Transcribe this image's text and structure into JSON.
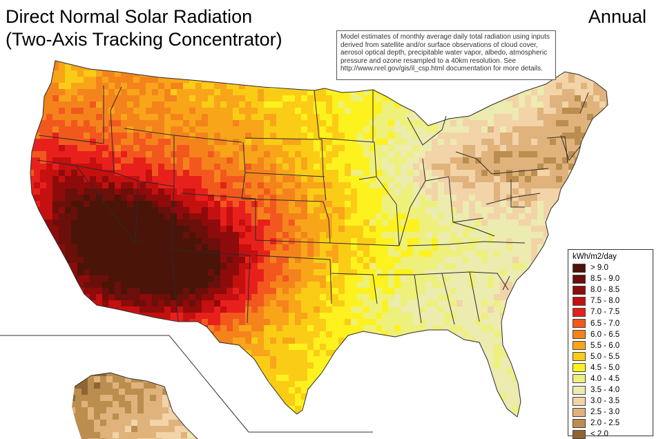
{
  "title": {
    "line1": "Direct Normal Solar Radiation",
    "line2": "(Two-Axis Tracking Concentrator)"
  },
  "period": "Annual",
  "note_lines": [
    "Model estimates of monthly average daily total radiation using inputs",
    "derived from satellite and/or surface observations of cloud cover,",
    "aerosol optical depth, precipitable water vapor, albedo, atmospheric",
    "pressure and ozone resampled to a 40km resolution.  See",
    "http://www.nrel.gov/gis/il_csp.html documentation for more details."
  ],
  "legend": {
    "unit": "kWh/m2/day",
    "classes": [
      {
        "label": "> 9.0",
        "color": "#4a1508"
      },
      {
        "label": "8.5 - 9.0",
        "color": "#6b0f0a"
      },
      {
        "label": "8.0 - 8.5",
        "color": "#8e0b0b"
      },
      {
        "label": "7.5 - 8.0",
        "color": "#c4100f"
      },
      {
        "label": "7.0 - 7.5",
        "color": "#e8201c"
      },
      {
        "label": "6.5 - 7.0",
        "color": "#f2581e"
      },
      {
        "label": "6.0 - 6.5",
        "color": "#f5831c"
      },
      {
        "label": "5.5 - 6.0",
        "color": "#f8a51a"
      },
      {
        "label": "5.0 - 5.5",
        "color": "#fbcc16"
      },
      {
        "label": "4.5 - 5.0",
        "color": "#fdf21d"
      },
      {
        "label": "4.0 - 4.5",
        "color": "#eef07c"
      },
      {
        "label": "3.5 - 4.0",
        "color": "#ecebb0"
      },
      {
        "label": "3.0 - 3.5",
        "color": "#f3d3a8"
      },
      {
        "label": "2.5 - 3.0",
        "color": "#dfb37b"
      },
      {
        "label": "2.0 - 2.5",
        "color": "#bb8e4f"
      },
      {
        "label": "< 2.0",
        "color": "#8f6534"
      }
    ]
  },
  "map": {
    "border_color": "#2a2a2a",
    "background_color": "#ffffff"
  }
}
